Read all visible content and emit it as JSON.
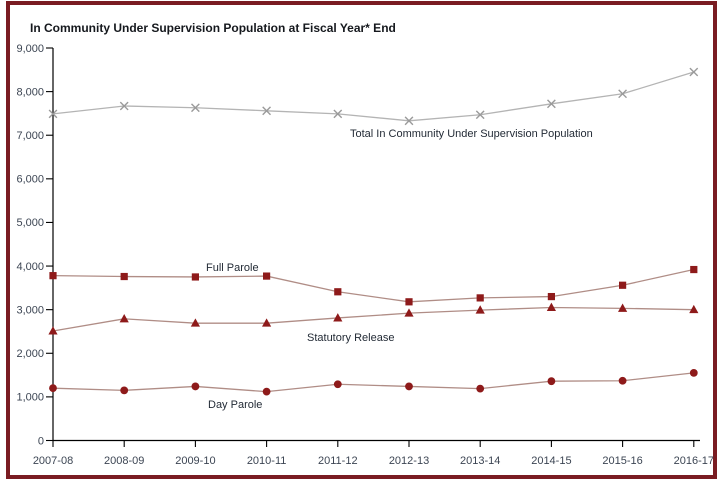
{
  "frame": {
    "border_color": "#7a1c22"
  },
  "chart_data": {
    "type": "line",
    "title": "In Community Under Supervision Population at Fiscal Year* End",
    "xlabel": "",
    "ylabel": "",
    "ylim": [
      0,
      9000
    ],
    "ytick_step": 1000,
    "ytick_labels": [
      "0",
      "1,000",
      "2,000",
      "3,000",
      "4,000",
      "5,000",
      "6,000",
      "7,000",
      "8,000",
      "9,000"
    ],
    "grid": false,
    "legend_position": "inline-labels",
    "categories": [
      "2007-08",
      "2008-09",
      "2009-10",
      "2010-11",
      "2011-12",
      "2012-13",
      "2013-14",
      "2014-15",
      "2015-16",
      "2016-17"
    ],
    "series": [
      {
        "name": "Total In Community Under Supervision Population",
        "marker": "x",
        "color": "#9a9a9a",
        "line_color": "#b4b4b4",
        "values": [
          7490,
          7670,
          7630,
          7560,
          7490,
          7330,
          7470,
          7720,
          7950,
          8450
        ],
        "label": {
          "x": 350,
          "y": 137,
          "anchor": "start"
        }
      },
      {
        "name": "Full Parole",
        "marker": "square",
        "color": "#8e1a1a",
        "line_color": "#b08d86",
        "values": [
          3780,
          3760,
          3750,
          3770,
          3410,
          3180,
          3270,
          3300,
          3560,
          3920
        ],
        "label": {
          "x": 206,
          "y": 271,
          "anchor": "start"
        }
      },
      {
        "name": "Statutory Release",
        "marker": "triangle",
        "color": "#8e1a1a",
        "line_color": "#b08d86",
        "values": [
          2510,
          2790,
          2690,
          2690,
          2810,
          2920,
          2990,
          3050,
          3030,
          3000
        ],
        "label": {
          "x": 307,
          "y": 341,
          "anchor": "start"
        }
      },
      {
        "name": "Day Parole",
        "marker": "circle",
        "color": "#8e1a1a",
        "line_color": "#b08d86",
        "values": [
          1200,
          1150,
          1240,
          1120,
          1290,
          1240,
          1190,
          1360,
          1370,
          1550
        ],
        "label": {
          "x": 208,
          "y": 408,
          "anchor": "start"
        }
      }
    ],
    "text_color": "#3c4553",
    "axis_color": "#000000"
  }
}
